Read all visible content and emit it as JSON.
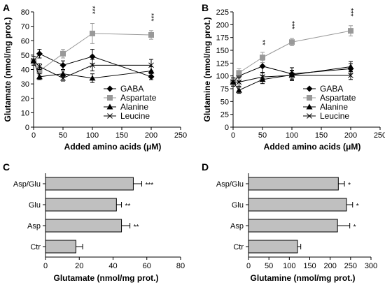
{
  "chart_data": [
    {
      "panel": "A",
      "type": "line",
      "xlabel": "Added amino acids (μM)",
      "ylabel": "Glutamate (nmol/mg prot.)",
      "xlim": [
        0,
        250
      ],
      "ylim": [
        0,
        80
      ],
      "xticks": [
        "0",
        "50",
        "100",
        "150",
        "200",
        "250"
      ],
      "yticks": [
        "0",
        "10",
        "20",
        "30",
        "40",
        "50",
        "60",
        "70",
        "80"
      ],
      "legend_position": "bottom-right",
      "x": [
        0,
        10,
        50,
        100,
        200
      ],
      "series": [
        {
          "name": "GABA",
          "marker": "diamond",
          "color": "#000000",
          "values": [
            46,
            51,
            43,
            49,
            35
          ],
          "errors": [
            3,
            3,
            3,
            5,
            2
          ],
          "significance": [
            "",
            "",
            "",
            "",
            ""
          ]
        },
        {
          "name": "Aspartate",
          "marker": "square",
          "color": "#999999",
          "values": [
            46,
            39,
            51,
            65,
            64
          ],
          "errors": [
            3,
            3,
            3,
            7,
            3
          ],
          "significance": [
            "",
            "",
            "",
            "***",
            "***"
          ]
        },
        {
          "name": "Alanine",
          "marker": "triangle",
          "color": "#000000",
          "values": [
            46,
            35,
            37,
            34,
            39
          ],
          "errors": [
            3,
            2,
            2,
            3,
            3
          ],
          "significance": [
            "",
            "",
            "",
            "",
            ""
          ]
        },
        {
          "name": "Leucine",
          "marker": "x",
          "color": "#000000",
          "values": [
            46,
            42,
            34,
            43,
            43
          ],
          "errors": [
            3,
            2,
            2,
            4,
            4
          ],
          "significance": [
            "",
            "",
            "",
            "",
            ""
          ]
        }
      ]
    },
    {
      "panel": "B",
      "type": "line",
      "xlabel": "Added amino acids (μM)",
      "ylabel": "Glutamine (nmol/mg prot.)",
      "xlim": [
        0,
        250
      ],
      "ylim": [
        0,
        225
      ],
      "xticks": [
        "0",
        "50",
        "100",
        "150",
        "200",
        "250"
      ],
      "yticks": [
        "0",
        "25",
        "50",
        "75",
        "100",
        "125",
        "150",
        "175",
        "200",
        "225"
      ],
      "legend_position": "bottom-right",
      "x": [
        0,
        10,
        50,
        100,
        200
      ],
      "series": [
        {
          "name": "GABA",
          "marker": "diamond",
          "color": "#000000",
          "values": [
            88,
            100,
            119,
            104,
            114
          ],
          "errors": [
            8,
            10,
            12,
            12,
            10
          ],
          "significance": [
            "",
            "",
            "",
            "",
            ""
          ]
        },
        {
          "name": "Aspartate",
          "marker": "square",
          "color": "#999999",
          "values": [
            88,
            106,
            136,
            166,
            188
          ],
          "errors": [
            8,
            8,
            10,
            7,
            10
          ],
          "significance": [
            "",
            "",
            "**",
            "***",
            "***"
          ]
        },
        {
          "name": "Alanine",
          "marker": "triangle",
          "color": "#000000",
          "values": [
            88,
            72,
            93,
            102,
            118
          ],
          "errors": [
            8,
            6,
            8,
            8,
            10
          ],
          "significance": [
            "",
            "",
            "",
            "",
            ""
          ]
        },
        {
          "name": "Leucine",
          "marker": "x",
          "color": "#000000",
          "values": [
            88,
            88,
            98,
            101,
            101
          ],
          "errors": [
            8,
            8,
            8,
            10,
            8
          ],
          "significance": [
            "",
            "",
            "",
            "",
            ""
          ]
        }
      ]
    },
    {
      "panel": "C",
      "type": "bar",
      "orientation": "horizontal",
      "xlabel": "Glutamate (nmol/mg prot.)",
      "xlim": [
        0,
        80
      ],
      "xticks": [
        "0",
        "20",
        "40",
        "60",
        "80"
      ],
      "categories": [
        "Asp/Glu",
        "Glu",
        "Asp",
        "Ctr"
      ],
      "values": [
        52,
        42,
        45,
        18
      ],
      "errors": [
        5,
        3,
        5,
        4
      ],
      "significance": [
        "***",
        "**",
        "**",
        ""
      ],
      "bar_color": "#c0c0c0"
    },
    {
      "panel": "D",
      "type": "bar",
      "orientation": "horizontal",
      "xlabel": "Glutamine (nmol/mg prot.)",
      "xlim": [
        0,
        300
      ],
      "xticks": [
        "0",
        "50",
        "100",
        "150",
        "200",
        "250",
        "300"
      ],
      "categories": [
        "Asp/Glu",
        "Glu",
        "Asp",
        "Ctr"
      ],
      "values": [
        220,
        240,
        218,
        120
      ],
      "errors": [
        15,
        15,
        30,
        8
      ],
      "significance": [
        "*",
        "*",
        "*",
        ""
      ],
      "bar_color": "#c0c0c0"
    }
  ]
}
